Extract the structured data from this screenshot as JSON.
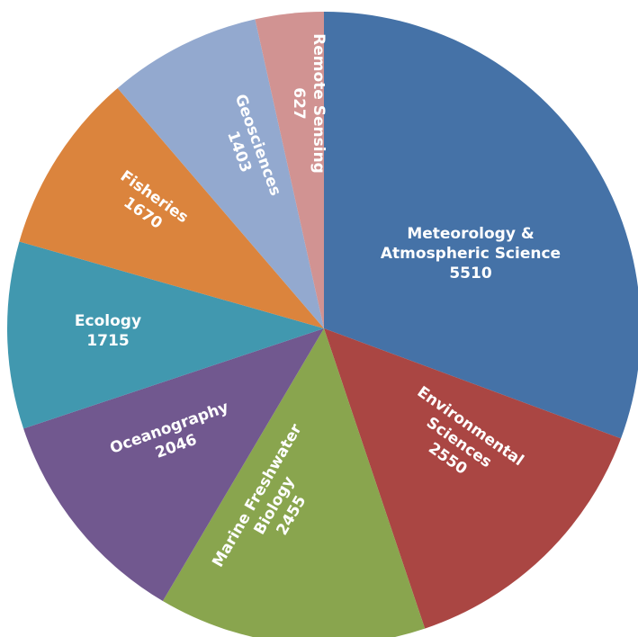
{
  "chart_data": {
    "type": "pie",
    "categories": [
      "Meteorology & Atmospheric Science",
      "Environmental Sciences",
      "Marine Freshwater Biology",
      "Oceanography",
      "Ecology",
      "Fisheries",
      "Geosciences",
      "Remote Sensing"
    ],
    "values": [
      5510,
      2550,
      2455,
      2046,
      1715,
      1670,
      1403,
      627
    ],
    "colors": [
      "#4572A7",
      "#AA4643",
      "#89A54E",
      "#71588F",
      "#4198AF",
      "#DB843D",
      "#93A9CF",
      "#D19392"
    ]
  }
}
